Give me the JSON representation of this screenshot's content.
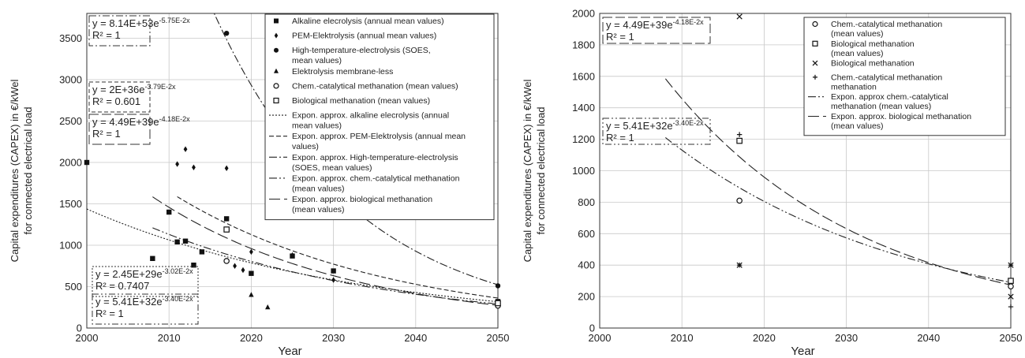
{
  "chart_data": [
    {
      "type": "scatter",
      "xlabel": "Year",
      "ylabel": "Capital expenditures  (CAPEX)  in €/kWel",
      "ylabel_sub": "for connected electrical load",
      "xlim": [
        2000,
        2050
      ],
      "ylim": [
        0,
        3800
      ],
      "xticks": [
        2000,
        2010,
        2020,
        2030,
        2040,
        2050
      ],
      "yticks": [
        0,
        500,
        1000,
        1500,
        2000,
        2500,
        3000,
        3500
      ],
      "grid": true,
      "legend_position": "top-right",
      "series": [
        {
          "name": "Alkaline elecrolysis (annual mean values)",
          "marker": "square",
          "points": [
            [
              2000,
              2000
            ],
            [
              2008,
              840
            ],
            [
              2010,
              1400
            ],
            [
              2011,
              1040
            ],
            [
              2012,
              1050
            ],
            [
              2013,
              760
            ],
            [
              2014,
              920
            ],
            [
              2017,
              1320
            ],
            [
              2020,
              660
            ],
            [
              2025,
              870
            ],
            [
              2030,
              690
            ],
            [
              2050,
              320
            ]
          ]
        },
        {
          "name": "PEM-Elektrolysis (annual mean values)",
          "marker": "diamond",
          "points": [
            [
              2011,
              1980
            ],
            [
              2012,
              2160
            ],
            [
              2013,
              1940
            ],
            [
              2017,
              1930
            ],
            [
              2018,
              750
            ],
            [
              2019,
              700
            ],
            [
              2020,
              920
            ],
            [
              2025,
              880
            ],
            [
              2030,
              580
            ],
            [
              2050,
              510
            ]
          ]
        },
        {
          "name": "High-temperature-electrolysis (SOES, mean values)",
          "marker": "circle",
          "points": [
            [
              2017,
              3560
            ],
            [
              2050,
              510
            ]
          ]
        },
        {
          "name": "Elektrolysis membrane-less",
          "marker": "triangle",
          "points": [
            [
              2020,
              400
            ],
            [
              2022,
              250
            ]
          ]
        },
        {
          "name": "Chem.-catalytical methanation (mean values)",
          "marker": "open-circle",
          "points": [
            [
              2017,
              810
            ],
            [
              2050,
              270
            ]
          ]
        },
        {
          "name": "Biological methanation (mean values)",
          "marker": "open-square",
          "points": [
            [
              2017,
              1190
            ],
            [
              2050,
              300
            ]
          ]
        }
      ],
      "fits": [
        {
          "name": "Expon. approx. alkaline elecrolysis (annual mean values)",
          "dash": "2,2",
          "a": 2.45e+29,
          "b": 0.0302,
          "x_range": [
            2000,
            2050
          ]
        },
        {
          "name": "Expon. approx. PEM-Elektrolysis (annual mean values)",
          "dash": "6,3",
          "a": 2e+36,
          "b": 0.0379,
          "x_range": [
            2011,
            2050
          ]
        },
        {
          "name": "Expon. approx. High-temperature-electrolysis (SOES, mean values)",
          "dash": "10,3,2,3",
          "a": 8.14e+53,
          "b": 0.0575,
          "x_range": [
            2009,
            2050
          ]
        },
        {
          "name": "Expon. approx. chem.-catalytical methanation (mean values)",
          "dash": "10,3,2,3,2,3",
          "a": 5.41e+32,
          "b": 0.034,
          "x_range": [
            2008,
            2050
          ]
        },
        {
          "name": "Expon. approx. biological methanation (mean values)",
          "dash": "14,5",
          "a": 4.49e+39,
          "b": 0.0418,
          "x_range": [
            2008,
            2050
          ]
        }
      ],
      "equations": [
        {
          "line1": "y = 8.14E+53e",
          "exp": "-5.75E-2x",
          "line2": "R² = 1",
          "border": "9,3,2,3"
        },
        {
          "line1": "y = 2E+36e",
          "exp": "-3.79E-2x",
          "line2": "R² = 0.601",
          "border": "5,3"
        },
        {
          "line1": "y = 4.49E+39e",
          "exp": "-4.18E-2x",
          "line2": "R² = 1",
          "border": "12,4"
        },
        {
          "line1": "y = 2.45E+29e",
          "exp": "-3.02E-2x",
          "line2": "R² = 0.7407",
          "border": "2,2"
        },
        {
          "line1": "y = 5.41E+32e",
          "exp": "-3.40E-2x",
          "line2": "R² = 1",
          "border": "8,3,2,3,2,3"
        }
      ],
      "legend": [
        {
          "label": "Alkaline elecrolysis (annual mean values)",
          "kind": "marker",
          "marker": "square"
        },
        {
          "label": "PEM-Elektrolysis (annual mean values)",
          "kind": "marker",
          "marker": "diamond"
        },
        {
          "label": "High-temperature-electrolysis (SOES,",
          "label2": "mean values)",
          "kind": "marker",
          "marker": "circle"
        },
        {
          "label": "Elektrolysis membrane-less",
          "kind": "marker",
          "marker": "triangle"
        },
        {
          "label": "Chem.-catalytical methanation (mean values)",
          "kind": "marker",
          "marker": "open-circle"
        },
        {
          "label": "Biological methanation (mean values)",
          "kind": "marker",
          "marker": "open-square"
        },
        {
          "label": "Expon. approx. alkaline elecrolysis (annual",
          "label2": "mean values)",
          "kind": "line",
          "dash": "2,2"
        },
        {
          "label": "Expon. approx. PEM-Elektrolysis (annual mean",
          "label2": "values)",
          "kind": "line",
          "dash": "6,3"
        },
        {
          "label": "Expon. approx. High-temperature-electrolysis",
          "label2": "(SOES, mean values)",
          "kind": "line",
          "dash": "10,3,2,3"
        },
        {
          "label": "Expon. approx. chem.-catalytical methanation",
          "label2": "(mean values)",
          "kind": "line",
          "dash": "10,3,2,3,2,3"
        },
        {
          "label": "Expon. approx. biological methanation",
          "label2": "(mean values)",
          "kind": "line",
          "dash": "14,5"
        }
      ]
    },
    {
      "type": "scatter",
      "xlabel": "Year",
      "ylabel": "Capital expenditures  (CAPEX)  in €/kWel",
      "ylabel_sub": "for connected electrical load",
      "xlim": [
        2000,
        2050
      ],
      "ylim": [
        0,
        2000
      ],
      "xticks": [
        2000,
        2010,
        2020,
        2030,
        2040,
        2050
      ],
      "yticks": [
        0,
        200,
        400,
        600,
        800,
        1000,
        1200,
        1400,
        1600,
        1800,
        2000
      ],
      "grid": true,
      "legend_position": "top-right",
      "series": [
        {
          "name": "Chem.-catalytical methanation (mean values)",
          "marker": "open-circle",
          "points": [
            [
              2017,
              810
            ],
            [
              2050,
              265
            ]
          ]
        },
        {
          "name": "Biological methanation (mean values)",
          "marker": "open-square",
          "points": [
            [
              2017,
              1190
            ],
            [
              2050,
              300
            ]
          ]
        },
        {
          "name": "Biological methanation",
          "marker": "x",
          "points": [
            [
              2017,
              1980
            ],
            [
              2017,
              400
            ],
            [
              2050,
              400
            ],
            [
              2050,
              200
            ]
          ]
        },
        {
          "name": "Chem.-catalytical methanation methanation",
          "marker": "plus",
          "points": [
            [
              2017,
              1230
            ],
            [
              2017,
              400
            ],
            [
              2050,
              400
            ],
            [
              2050,
              135
            ]
          ]
        }
      ],
      "fits": [
        {
          "name": "Expon. approx chem.-catalytical methanation (mean values)",
          "dash": "10,3,2,3,2,3",
          "a": 5.41e+32,
          "b": 0.034,
          "x_range": [
            2008,
            2050
          ]
        },
        {
          "name": "Expon. approx. biological methanation (mean values)",
          "dash": "14,5",
          "a": 4.49e+39,
          "b": 0.0418,
          "x_range": [
            2008,
            2050
          ]
        }
      ],
      "equations": [
        {
          "line1": "y = 4.49E+39e",
          "exp": "-4.18E-2x",
          "line2": "R² = 1",
          "border": "12,4"
        },
        {
          "line1": "y = 5.41E+32e",
          "exp": "-3.40E-2x",
          "line2": "R² = 1",
          "border": "8,3,2,3,2,3"
        }
      ],
      "legend": [
        {
          "label": "Chem.-catalytical methanation",
          "label2": "(mean values)",
          "kind": "marker",
          "marker": "open-circle"
        },
        {
          "label": "Biological methanation",
          "label2": "(mean values)",
          "kind": "marker",
          "marker": "open-square"
        },
        {
          "label": "Biological methanation",
          "kind": "marker",
          "marker": "x"
        },
        {
          "label": "Chem.-catalytical methanation",
          "label2": "methanation",
          "kind": "marker",
          "marker": "plus"
        },
        {
          "label": "Expon. approx chem.-catalytical",
          "label2": "methanation (mean values)",
          "kind": "line",
          "dash": "10,3,2,3,2,3"
        },
        {
          "label": "Expon. approx. biological methanation",
          "label2": "(mean values)",
          "kind": "line",
          "dash": "14,5"
        }
      ]
    }
  ]
}
